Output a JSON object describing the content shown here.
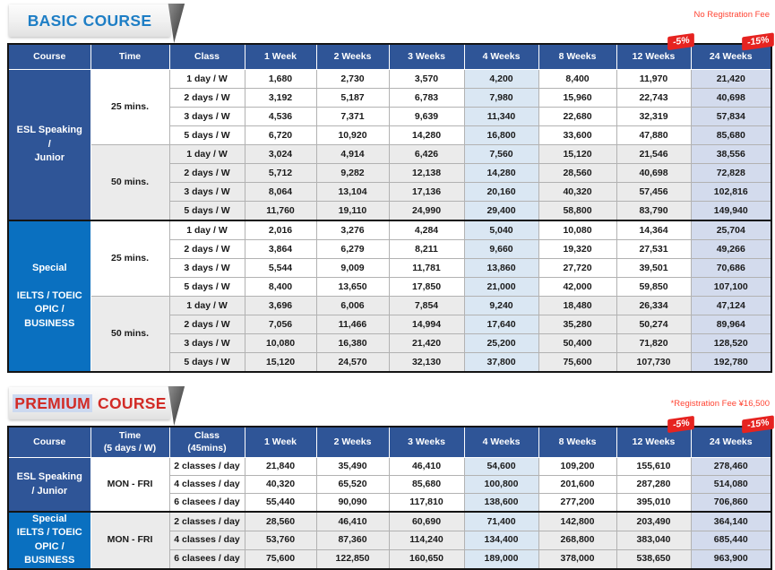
{
  "colors": {
    "header_navy": "#2f5597",
    "esl_navy": "#2f5597",
    "special_blue": "#0a70c0",
    "row_shade": "#ebebeb",
    "col4_tint": "#dae7f3",
    "col24_tint": "#d3dbed",
    "badge_red": "#e62320",
    "note_red": "#ff4433",
    "basic_title_blue": "#1e7ec5",
    "premium_title_red": "#d22b26",
    "premium_highlight": "#ccd9f0"
  },
  "tables": [
    {
      "title": {
        "prefix": "BASIC",
        "suffix": "COURSE"
      },
      "note": "No Registration Fee",
      "headers": [
        {
          "label": "Course"
        },
        {
          "label": "Time"
        },
        {
          "label": "Class"
        },
        {
          "label": "1 Week"
        },
        {
          "label": "2 Weeks"
        },
        {
          "label": "3 Weeks"
        },
        {
          "label": "4 Weeks"
        },
        {
          "label": "8 Weeks"
        },
        {
          "label": "12 Weeks",
          "badge": "-5%"
        },
        {
          "label": "24 Weeks",
          "badge": "-15%"
        }
      ],
      "groups": [
        {
          "course": "ESL Speaking\n/\nJunior",
          "style": "navy",
          "blocks": [
            {
              "time": "25 mins.",
              "shaded": false,
              "rows": [
                {
                  "class": "1 day / W",
                  "prices": [
                    "1,680",
                    "2,730",
                    "3,570",
                    "4,200",
                    "8,400",
                    "11,970",
                    "21,420"
                  ]
                },
                {
                  "class": "2 days / W",
                  "prices": [
                    "3,192",
                    "5,187",
                    "6,783",
                    "7,980",
                    "15,960",
                    "22,743",
                    "40,698"
                  ]
                },
                {
                  "class": "3 days / W",
                  "prices": [
                    "4,536",
                    "7,371",
                    "9,639",
                    "11,340",
                    "22,680",
                    "32,319",
                    "57,834"
                  ]
                },
                {
                  "class": "5 days / W",
                  "prices": [
                    "6,720",
                    "10,920",
                    "14,280",
                    "16,800",
                    "33,600",
                    "47,880",
                    "85,680"
                  ]
                }
              ]
            },
            {
              "time": "50 mins.",
              "shaded": true,
              "rows": [
                {
                  "class": "1 day / W",
                  "prices": [
                    "3,024",
                    "4,914",
                    "6,426",
                    "7,560",
                    "15,120",
                    "21,546",
                    "38,556"
                  ]
                },
                {
                  "class": "2 days / W",
                  "prices": [
                    "5,712",
                    "9,282",
                    "12,138",
                    "14,280",
                    "28,560",
                    "40,698",
                    "72,828"
                  ]
                },
                {
                  "class": "3 days / W",
                  "prices": [
                    "8,064",
                    "13,104",
                    "17,136",
                    "20,160",
                    "40,320",
                    "57,456",
                    "102,816"
                  ]
                },
                {
                  "class": "5 days / W",
                  "prices": [
                    "11,760",
                    "19,110",
                    "24,990",
                    "29,400",
                    "58,800",
                    "83,790",
                    "149,940"
                  ]
                }
              ]
            }
          ]
        },
        {
          "course": "Special\n\nIELTS / TOEIC\nOPIC / BUSINESS",
          "style": "blue",
          "blocks": [
            {
              "time": "25 mins.",
              "shaded": false,
              "rows": [
                {
                  "class": "1 day / W",
                  "prices": [
                    "2,016",
                    "3,276",
                    "4,284",
                    "5,040",
                    "10,080",
                    "14,364",
                    "25,704"
                  ]
                },
                {
                  "class": "2 days / W",
                  "prices": [
                    "3,864",
                    "6,279",
                    "8,211",
                    "9,660",
                    "19,320",
                    "27,531",
                    "49,266"
                  ]
                },
                {
                  "class": "3 days / W",
                  "prices": [
                    "5,544",
                    "9,009",
                    "11,781",
                    "13,860",
                    "27,720",
                    "39,501",
                    "70,686"
                  ]
                },
                {
                  "class": "5 days / W",
                  "prices": [
                    "8,400",
                    "13,650",
                    "17,850",
                    "21,000",
                    "42,000",
                    "59,850",
                    "107,100"
                  ]
                }
              ]
            },
            {
              "time": "50 mins.",
              "shaded": true,
              "rows": [
                {
                  "class": "1 day / W",
                  "prices": [
                    "3,696",
                    "6,006",
                    "7,854",
                    "9,240",
                    "18,480",
                    "26,334",
                    "47,124"
                  ]
                },
                {
                  "class": "2 days / W",
                  "prices": [
                    "7,056",
                    "11,466",
                    "14,994",
                    "17,640",
                    "35,280",
                    "50,274",
                    "89,964"
                  ]
                },
                {
                  "class": "3 days / W",
                  "prices": [
                    "10,080",
                    "16,380",
                    "21,420",
                    "25,200",
                    "50,400",
                    "71,820",
                    "128,520"
                  ]
                },
                {
                  "class": "5 days / W",
                  "prices": [
                    "15,120",
                    "24,570",
                    "32,130",
                    "37,800",
                    "75,600",
                    "107,730",
                    "192,780"
                  ]
                }
              ]
            }
          ]
        }
      ]
    },
    {
      "title": {
        "prefix": "PREMIUM",
        "suffix": "COURSE"
      },
      "note": "*Registration Fee ¥16,500",
      "headers": [
        {
          "label": "Course"
        },
        {
          "label": "Time\n(5 days / W)"
        },
        {
          "label": "Class\n(45mins)"
        },
        {
          "label": "1 Week"
        },
        {
          "label": "2 Weeks"
        },
        {
          "label": "3 Weeks"
        },
        {
          "label": "4 Weeks"
        },
        {
          "label": "8 Weeks"
        },
        {
          "label": "12 Weeks",
          "badge": "-5%"
        },
        {
          "label": "24 Weeks",
          "badge": "-15%"
        }
      ],
      "groups": [
        {
          "course": "ESL Speaking\n/ Junior",
          "style": "navy",
          "blocks": [
            {
              "time": "MON - FRI",
              "shaded": false,
              "rows": [
                {
                  "class": "2 classes / day",
                  "prices": [
                    "21,840",
                    "35,490",
                    "46,410",
                    "54,600",
                    "109,200",
                    "155,610",
                    "278,460"
                  ]
                },
                {
                  "class": "4 classes / day",
                  "prices": [
                    "40,320",
                    "65,520",
                    "85,680",
                    "100,800",
                    "201,600",
                    "287,280",
                    "514,080"
                  ]
                },
                {
                  "class": "6 clasees / day",
                  "prices": [
                    "55,440",
                    "90,090",
                    "117,810",
                    "138,600",
                    "277,200",
                    "395,010",
                    "706,860"
                  ]
                }
              ]
            }
          ]
        },
        {
          "course": "Special\nIELTS / TOEIC\nOPIC / BUSINESS",
          "style": "blue",
          "blocks": [
            {
              "time": "MON - FRI",
              "shaded": true,
              "rows": [
                {
                  "class": "2 classes / day",
                  "prices": [
                    "28,560",
                    "46,410",
                    "60,690",
                    "71,400",
                    "142,800",
                    "203,490",
                    "364,140"
                  ]
                },
                {
                  "class": "4 classes / day",
                  "prices": [
                    "53,760",
                    "87,360",
                    "114,240",
                    "134,400",
                    "268,800",
                    "383,040",
                    "685,440"
                  ]
                },
                {
                  "class": "6 clasees / day",
                  "prices": [
                    "75,600",
                    "122,850",
                    "160,650",
                    "189,000",
                    "378,000",
                    "538,650",
                    "963,900"
                  ]
                }
              ]
            }
          ]
        }
      ]
    }
  ]
}
